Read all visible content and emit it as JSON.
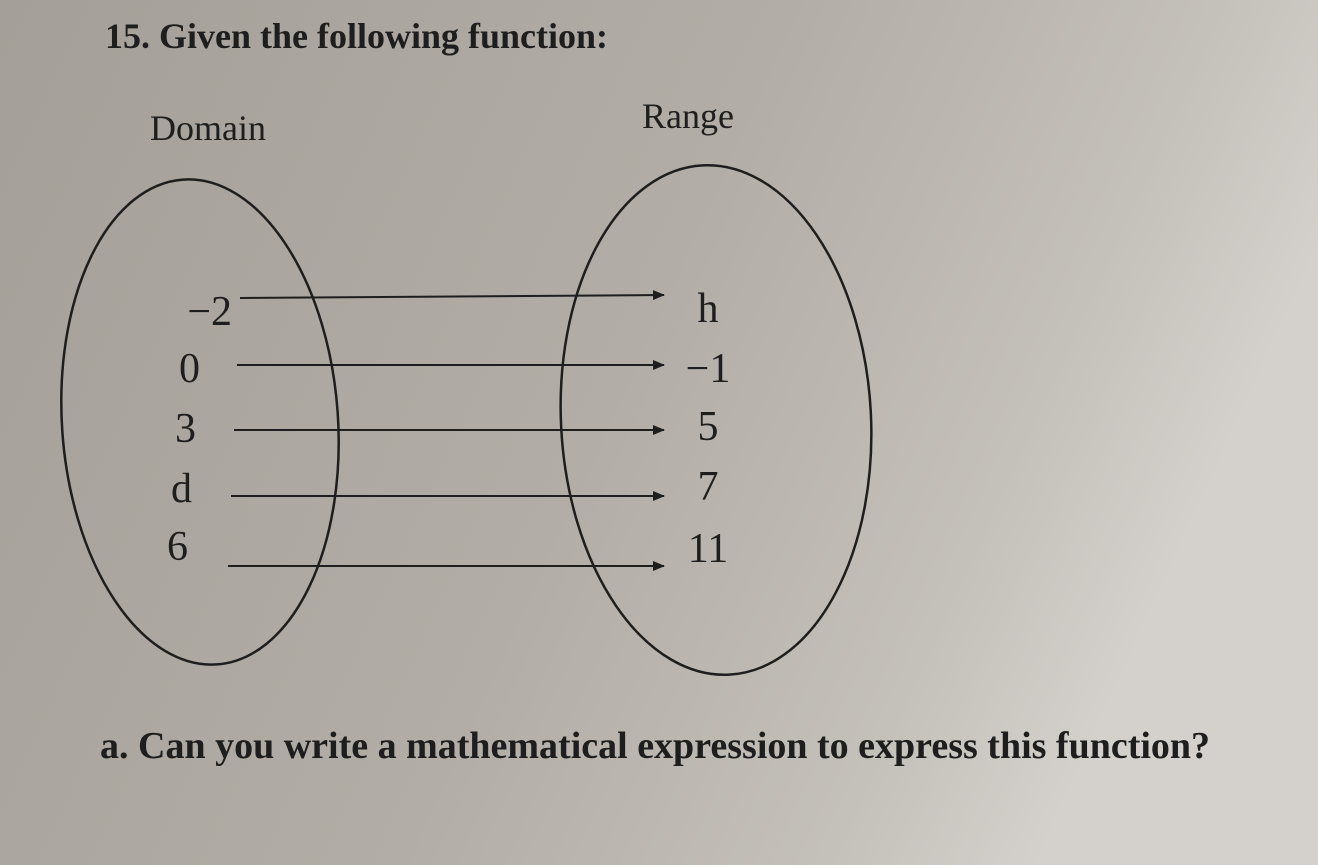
{
  "question": {
    "title": "15. Given the following function:",
    "domain_label": "Domain",
    "range_label": "Range",
    "domain": [
      "−2",
      "0",
      "3",
      "d",
      "6"
    ],
    "range": [
      "h",
      "−1",
      "5",
      "7",
      "11"
    ],
    "part_a": "a.  Can you write a mathematical expression to express this function?"
  }
}
